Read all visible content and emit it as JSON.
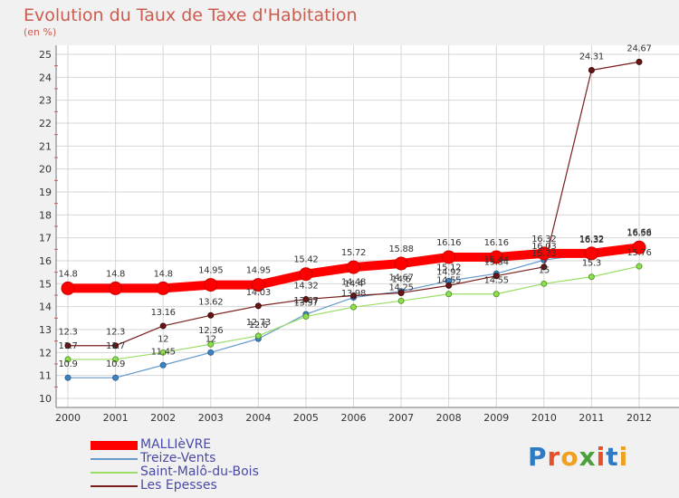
{
  "title": "Evolution du Taux de Taxe d'Habitation",
  "unit": "(en %)",
  "brand": "Proxiti",
  "chart_data": {
    "type": "line",
    "title": "Evolution du Taux de Taxe d'Habitation",
    "ylabel": "(en %)",
    "xlabel": "",
    "x": [
      "2000",
      "2001",
      "2002",
      "2003",
      "2004",
      "2005",
      "2006",
      "2007",
      "2008",
      "2009",
      "2010",
      "2011",
      "2012"
    ],
    "ylim": [
      10,
      25
    ],
    "yticks": [
      "10",
      "11",
      "12",
      "13",
      "14",
      "15",
      "16",
      "17",
      "18",
      "19",
      "20",
      "21",
      "22",
      "23",
      "24",
      "25"
    ],
    "grid": true,
    "legend": "bottom-left",
    "series": [
      {
        "name": "MALLIèVRE",
        "color": "#ff0000",
        "values": [
          14.8,
          14.8,
          14.8,
          14.95,
          14.95,
          15.42,
          15.72,
          15.88,
          16.16,
          16.16,
          16.32,
          16.32,
          16.58
        ],
        "labels": [
          "14.8",
          "14.8",
          "14.8",
          "14.95",
          "14.95",
          "15.42",
          "15.72",
          "15.88",
          "16.16",
          "16.16",
          "16.32",
          "16.32",
          "16.58"
        ]
      },
      {
        "name": "Treize-Vents",
        "color": "#6699cc",
        "values": [
          10.9,
          10.9,
          11.45,
          12.0,
          12.6,
          13.67,
          14.4,
          14.67,
          15.12,
          15.44,
          16.03,
          16.32,
          16.66
        ],
        "labels": [
          "10.9",
          "10.9",
          "11.45",
          "12",
          "12.6",
          "13.67",
          "14.4",
          "14.67",
          "15.12",
          "15.44",
          "16.03",
          "16.32",
          "16.66"
        ]
      },
      {
        "name": "Saint-Malô-du-Bois",
        "color": "#99dd66",
        "values": [
          11.7,
          11.7,
          12.0,
          12.36,
          12.73,
          13.57,
          13.98,
          14.25,
          14.55,
          14.55,
          15.0,
          15.3,
          15.76
        ],
        "labels": [
          "11.7",
          "11.7",
          "12",
          "12.36",
          "12.73",
          "13.57",
          "13.98",
          "14.25",
          "14.55",
          "14.55",
          "15",
          "15.3",
          "15.76"
        ]
      },
      {
        "name": "Les Epesses",
        "color": "#7a1e1e",
        "values": [
          12.3,
          12.3,
          13.16,
          13.62,
          14.03,
          14.32,
          14.48,
          14.6,
          14.92,
          15.34,
          15.73,
          24.31,
          24.67
        ],
        "labels": [
          "12.3",
          "12.3",
          "13.16",
          "13.62",
          "14.03",
          "14.32",
          "14.48",
          "14.6",
          "14.92",
          "15.34",
          "15.73",
          "24.31",
          "24.67"
        ]
      }
    ]
  }
}
